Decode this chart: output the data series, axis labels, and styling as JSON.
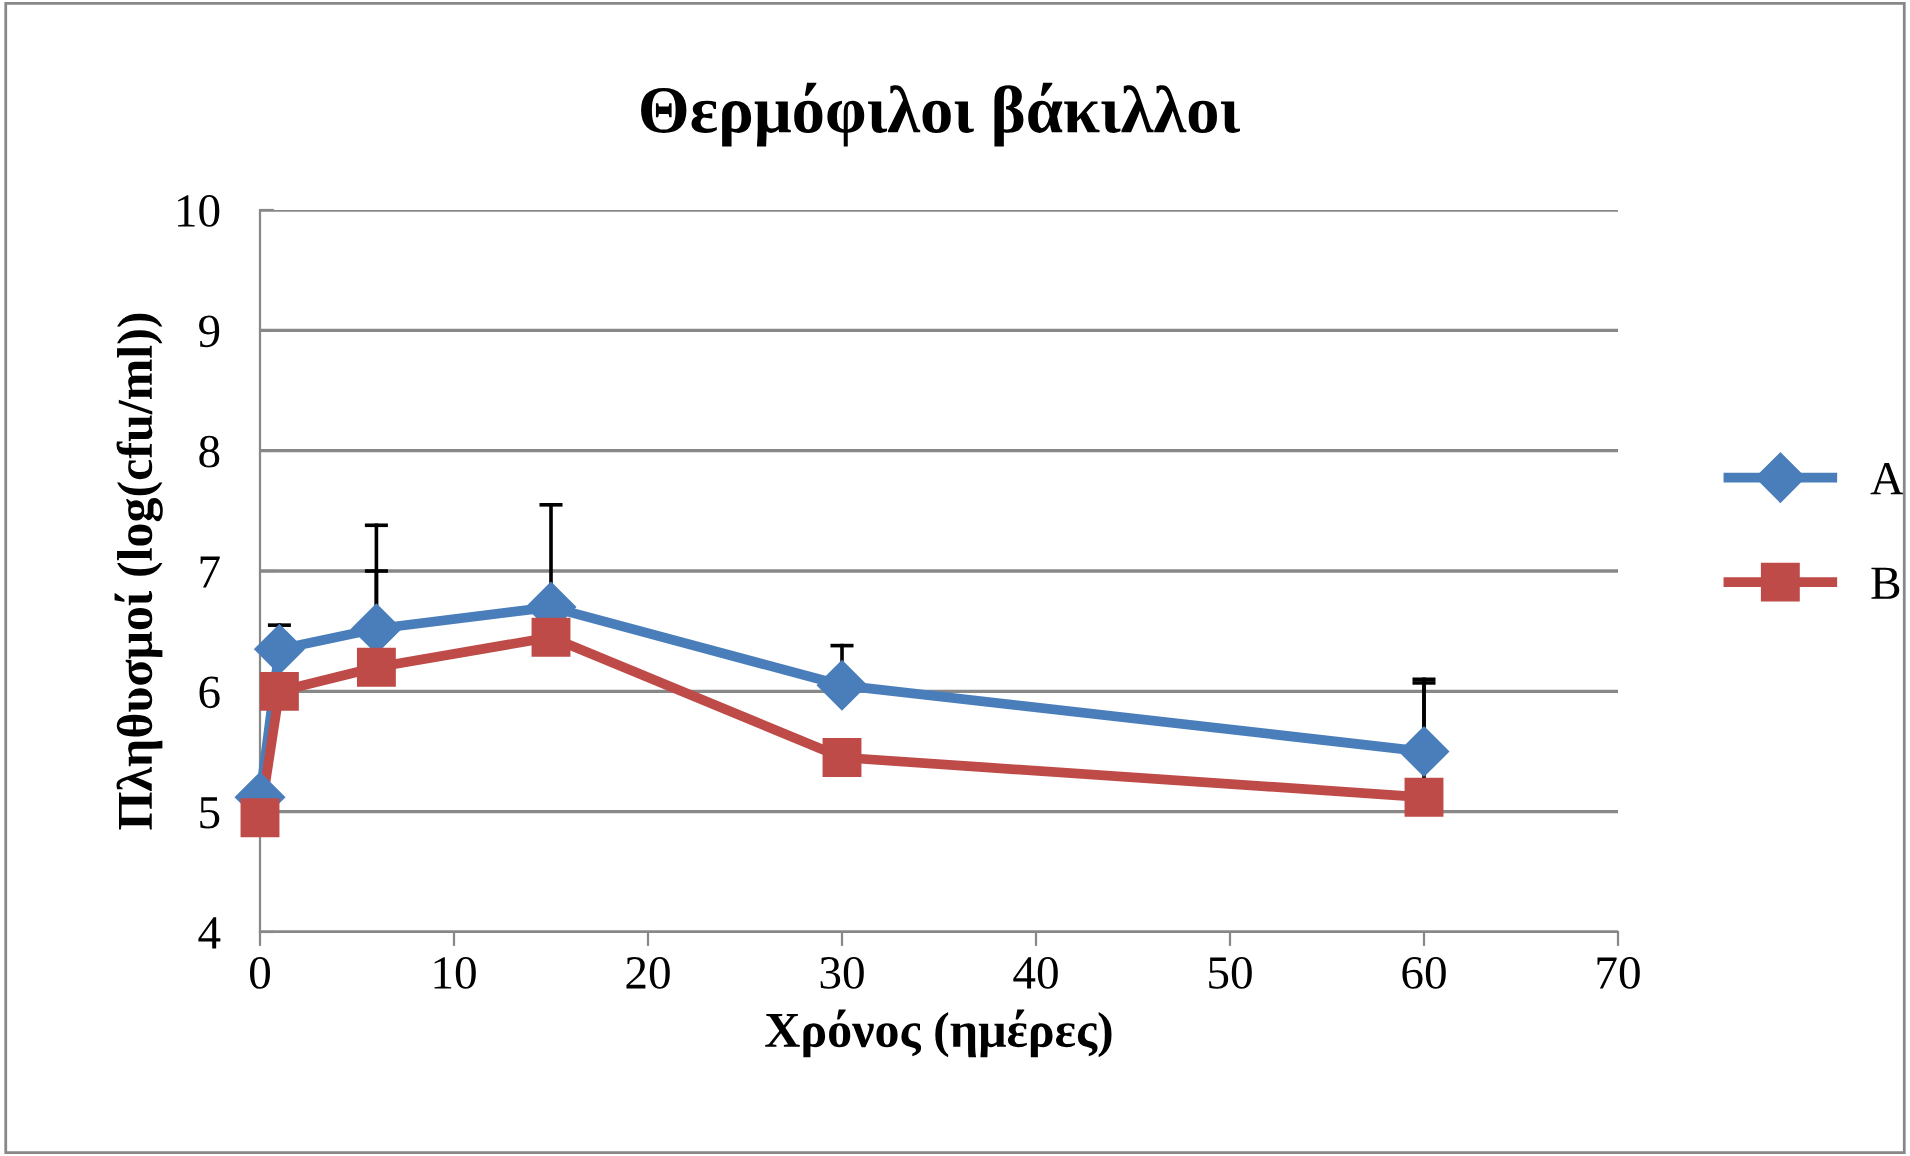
{
  "chart_data": {
    "type": "line",
    "title": "Θερμόφιλοι βάκιλλοι",
    "xlabel": "Χρόνος (ημέρες)",
    "ylabel": "Πληθυσμοί (log(cfu/ml))",
    "x": [
      0,
      1,
      6,
      15,
      30,
      60
    ],
    "series": [
      {
        "name": "A",
        "color": "#4a7ebb",
        "marker": "diamond",
        "values": [
          5.12,
          6.35,
          6.52,
          6.7,
          6.05,
          5.5
        ],
        "errors": [
          null,
          [
            6.35,
            6.55
          ],
          [
            6.52,
            7.38
          ],
          [
            6.7,
            7.55
          ],
          [
            6.05,
            6.38
          ],
          [
            5.5,
            6.1
          ]
        ]
      },
      {
        "name": "B",
        "color": "#be4b48",
        "marker": "square",
        "values": [
          4.95,
          6.0,
          6.2,
          6.45,
          5.45,
          5.12
        ],
        "errors": [
          null,
          null,
          [
            6.2,
            7.0
          ],
          null,
          null,
          [
            5.12,
            6.07
          ]
        ]
      }
    ],
    "xlim": [
      0,
      70
    ],
    "xticks": [
      0,
      10,
      20,
      30,
      40,
      50,
      60,
      70
    ],
    "ylim": [
      4,
      10
    ],
    "yticks": [
      4,
      5,
      6,
      7,
      8,
      9,
      10
    ],
    "grid": "y",
    "legend": "right",
    "line_style": "solid"
  }
}
